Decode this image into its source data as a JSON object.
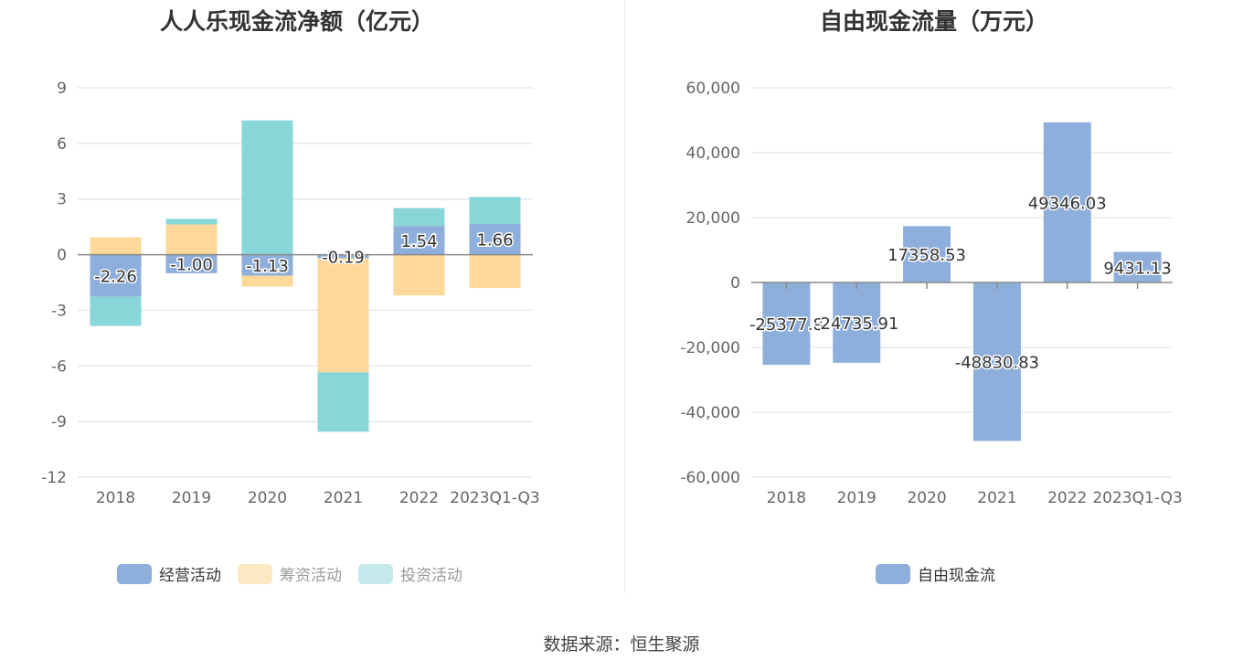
{
  "source": "数据来源：恒生聚源",
  "chart_data": [
    {
      "type": "bar",
      "stacked": true,
      "title": "人人乐现金流净额（亿元）",
      "categories": [
        "2018",
        "2019",
        "2020",
        "2021",
        "2022",
        "2023Q1-Q3"
      ],
      "ylim": [
        -12,
        9
      ],
      "yticks": [
        9,
        6,
        3,
        0,
        -3,
        -6,
        -9,
        -12
      ],
      "legend_position": "bottom",
      "series": [
        {
          "name": "经营活动",
          "color": "#8eaedb",
          "values": [
            -2.26,
            -1.0,
            -1.13,
            -0.19,
            1.54,
            1.66
          ],
          "labels": [
            "-2.26",
            "-1.00",
            "-1.13",
            "-0.19",
            "1.54",
            "1.66"
          ]
        },
        {
          "name": "筹资活动",
          "color": "#fdd899",
          "values": [
            0.94,
            1.63,
            -0.59,
            -6.16,
            -2.2,
            -1.8
          ]
        },
        {
          "name": "投资活动",
          "color": "#88d6d8",
          "values": [
            -1.58,
            0.3,
            7.24,
            -3.2,
            0.97,
            1.45
          ]
        }
      ]
    },
    {
      "type": "bar",
      "title": "自由现金流量（万元）",
      "categories": [
        "2018",
        "2019",
        "2020",
        "2021",
        "2022",
        "2023Q1-Q3"
      ],
      "ylim": [
        -60000,
        60000
      ],
      "yticks": [
        "60,000",
        "40,000",
        "20,000",
        "0",
        "-20,000",
        "-40,000",
        "-60,000"
      ],
      "ytick_values": [
        60000,
        40000,
        20000,
        0,
        -20000,
        -40000,
        -60000
      ],
      "legend_position": "bottom",
      "series": [
        {
          "name": "自由现金流",
          "color": "#8eaedb",
          "values": [
            -25377.8,
            -24735.91,
            17358.53,
            -48830.83,
            49346.03,
            9431.13
          ],
          "labels": [
            "-25377.8",
            "-24735.91",
            "17358.53",
            "-48830.83",
            "49346.03",
            "9431.13"
          ]
        }
      ]
    }
  ]
}
